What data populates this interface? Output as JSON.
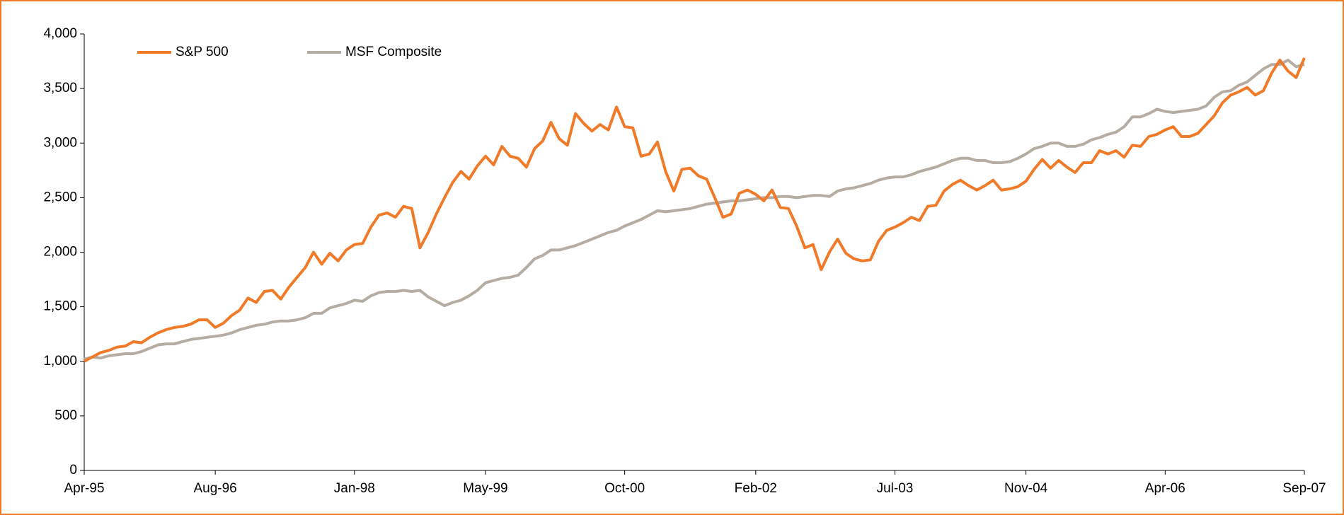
{
  "chart_data": {
    "type": "line",
    "categories": [
      "Apr-95",
      null,
      null,
      null,
      null,
      null,
      null,
      null,
      null,
      null,
      null,
      null,
      null,
      null,
      null,
      null,
      "Aug-96",
      null,
      null,
      null,
      null,
      null,
      null,
      null,
      null,
      null,
      null,
      null,
      null,
      null,
      null,
      null,
      null,
      "Jan-98",
      null,
      null,
      null,
      null,
      null,
      null,
      null,
      null,
      null,
      null,
      null,
      null,
      null,
      null,
      null,
      "May-99",
      null,
      null,
      null,
      null,
      null,
      null,
      null,
      null,
      null,
      null,
      null,
      null,
      null,
      null,
      null,
      null,
      "Oct-00",
      null,
      null,
      null,
      null,
      null,
      null,
      null,
      null,
      null,
      null,
      null,
      null,
      null,
      null,
      null,
      "Feb-02",
      null,
      null,
      null,
      null,
      null,
      null,
      null,
      null,
      null,
      null,
      null,
      null,
      null,
      null,
      null,
      null,
      "Jul-03",
      null,
      null,
      null,
      null,
      null,
      null,
      null,
      null,
      null,
      null,
      null,
      null,
      null,
      null,
      null,
      "Nov-04",
      null,
      null,
      null,
      null,
      null,
      null,
      null,
      null,
      null,
      null,
      null,
      null,
      null,
      null,
      null,
      null,
      "Apr-06",
      null,
      null,
      null,
      null,
      null,
      null,
      null,
      null,
      null,
      null,
      null,
      null,
      null,
      null,
      null,
      null,
      "Sep-07"
    ],
    "series": [
      {
        "name": "S&P 500",
        "color": "#f07a28",
        "values": [
          1000,
          1040,
          1080,
          1100,
          1130,
          1140,
          1180,
          1170,
          1220,
          1260,
          1290,
          1310,
          1320,
          1340,
          1380,
          1380,
          1310,
          1350,
          1420,
          1470,
          1580,
          1540,
          1640,
          1650,
          1570,
          1680,
          1770,
          1860,
          2000,
          1890,
          1990,
          1920,
          2020,
          2070,
          2080,
          2230,
          2340,
          2360,
          2320,
          2420,
          2400,
          2040,
          2180,
          2350,
          2500,
          2640,
          2740,
          2670,
          2790,
          2880,
          2800,
          2970,
          2880,
          2860,
          2780,
          2950,
          3020,
          3190,
          3040,
          2980,
          3270,
          3180,
          3110,
          3170,
          3120,
          3330,
          3150,
          3140,
          2880,
          2900,
          3010,
          2740,
          2560,
          2760,
          2770,
          2700,
          2670,
          2500,
          2320,
          2350,
          2540,
          2570,
          2530,
          2470,
          2570,
          2410,
          2400,
          2240,
          2040,
          2070,
          1840,
          2000,
          2120,
          1990,
          1940,
          1920,
          1930,
          2100,
          2200,
          2230,
          2270,
          2320,
          2290,
          2420,
          2430,
          2560,
          2620,
          2660,
          2610,
          2570,
          2610,
          2660,
          2570,
          2580,
          2600,
          2650,
          2760,
          2850,
          2770,
          2840,
          2780,
          2730,
          2820,
          2820,
          2930,
          2900,
          2930,
          2870,
          2980,
          2970,
          3060,
          3080,
          3120,
          3150,
          3060,
          3060,
          3090,
          3170,
          3250,
          3370,
          3440,
          3470,
          3510,
          3440,
          3480,
          3640,
          3760,
          3660,
          3600,
          3780
        ]
      },
      {
        "name": "MSF Composite",
        "color": "#b5aca3",
        "values": [
          1020,
          1040,
          1030,
          1050,
          1060,
          1070,
          1070,
          1090,
          1120,
          1150,
          1160,
          1160,
          1180,
          1200,
          1210,
          1220,
          1230,
          1240,
          1260,
          1290,
          1310,
          1330,
          1340,
          1360,
          1370,
          1370,
          1380,
          1400,
          1440,
          1440,
          1490,
          1510,
          1530,
          1560,
          1550,
          1600,
          1630,
          1640,
          1640,
          1650,
          1640,
          1650,
          1590,
          1550,
          1510,
          1540,
          1560,
          1600,
          1650,
          1720,
          1740,
          1760,
          1770,
          1790,
          1860,
          1940,
          1970,
          2020,
          2020,
          2040,
          2060,
          2090,
          2120,
          2150,
          2180,
          2200,
          2240,
          2270,
          2300,
          2340,
          2380,
          2370,
          2380,
          2390,
          2400,
          2420,
          2440,
          2450,
          2460,
          2470,
          2470,
          2480,
          2490,
          2500,
          2500,
          2510,
          2510,
          2500,
          2510,
          2520,
          2520,
          2510,
          2560,
          2580,
          2590,
          2610,
          2630,
          2660,
          2680,
          2690,
          2690,
          2710,
          2740,
          2760,
          2780,
          2810,
          2840,
          2860,
          2860,
          2840,
          2840,
          2820,
          2820,
          2830,
          2860,
          2900,
          2950,
          2970,
          3000,
          3000,
          2970,
          2970,
          2990,
          3030,
          3050,
          3080,
          3100,
          3150,
          3240,
          3240,
          3270,
          3310,
          3290,
          3280,
          3290,
          3300,
          3310,
          3340,
          3420,
          3470,
          3480,
          3530,
          3560,
          3620,
          3680,
          3720,
          3720,
          3760,
          3700,
          3720
        ]
      }
    ],
    "ylim": [
      0,
      4000
    ],
    "yticks": [
      0,
      500,
      {
        "value": 1000,
        "label": "1,000"
      },
      {
        "value": 1500,
        "label": "1,500"
      },
      {
        "value": 2000,
        "label": "2,000"
      },
      {
        "value": 2500,
        "label": "2,500"
      },
      {
        "value": 3000,
        "label": "3,000"
      },
      {
        "value": 3500,
        "label": "3,500"
      },
      {
        "value": 4000,
        "label": "4,000"
      }
    ],
    "grid": false,
    "legend": "upper left"
  }
}
